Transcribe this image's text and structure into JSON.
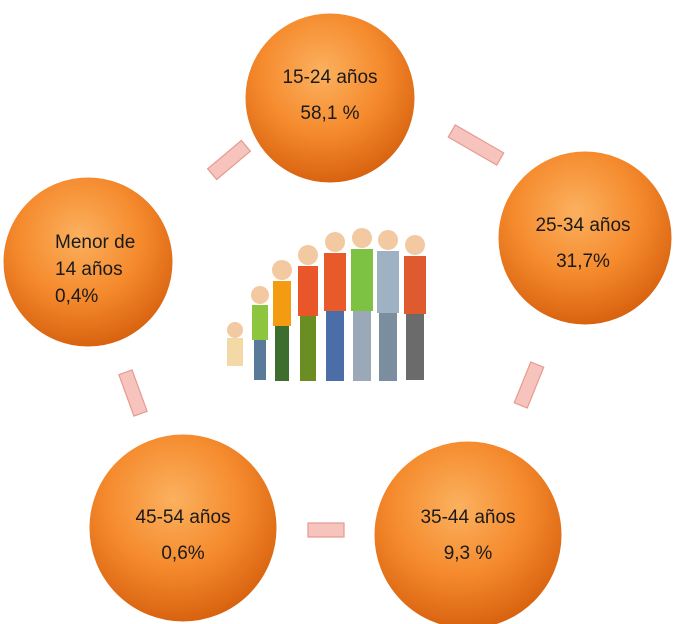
{
  "nodes": [
    {
      "lines": [
        "15-24 años",
        "58,1 %"
      ]
    },
    {
      "lines": [
        "25-34 años",
        "31,7%"
      ]
    },
    {
      "lines": [
        "35-44 años",
        "9,3 %"
      ]
    },
    {
      "lines": [
        "45-54 años",
        "0,6%"
      ]
    },
    {
      "lines": [
        "Menor de",
        "14 años",
        "0,4%"
      ]
    }
  ]
}
